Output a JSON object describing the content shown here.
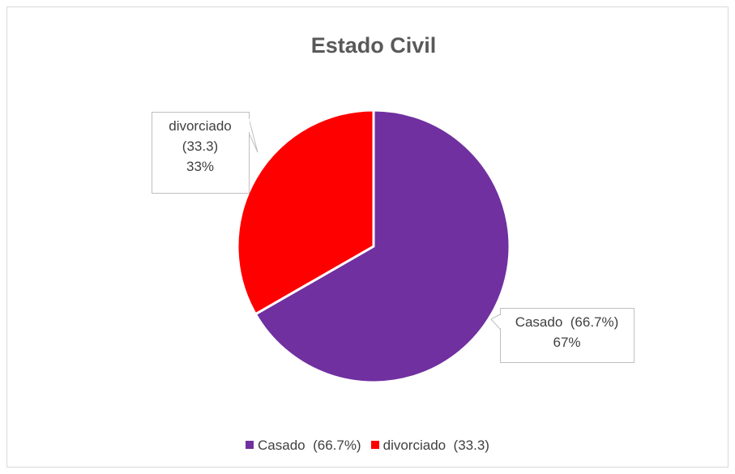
{
  "chart_data": {
    "type": "pie",
    "title": "Estado Civil",
    "categories": [
      "Casado  (66.7%)",
      "divorciado  (33.3)"
    ],
    "values": [
      66.7,
      33.3
    ],
    "value_labels": [
      "67%",
      "33%"
    ],
    "colors": [
      "#7030a0",
      "#ff0000"
    ],
    "legend": "bottom"
  }
}
